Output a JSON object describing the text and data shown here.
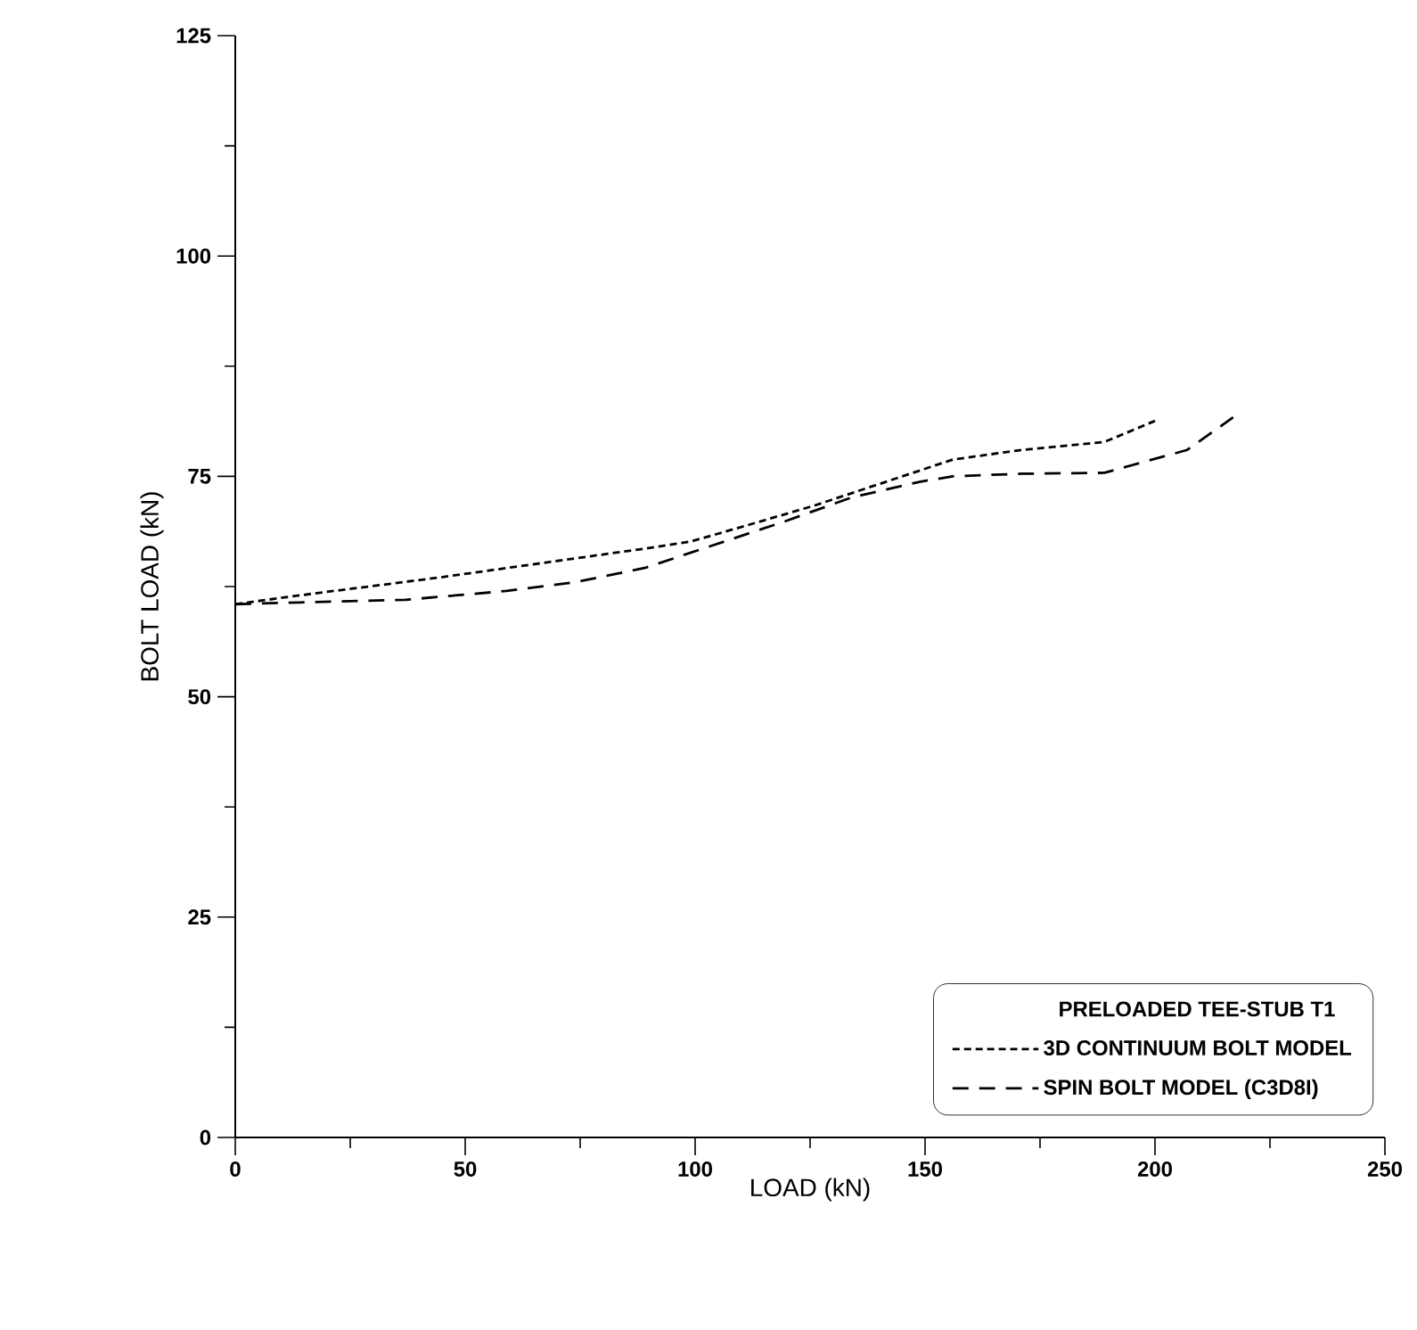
{
  "chart_data": {
    "type": "line",
    "xlabel": "LOAD (kN)",
    "ylabel": "BOLT LOAD (kN)",
    "legend_title": "PRELOADED TEE-STUB T1",
    "xlim": [
      0,
      250
    ],
    "ylim": [
      0,
      125
    ],
    "xticks": [
      0,
      50,
      100,
      150,
      200,
      250
    ],
    "yticks": [
      0,
      25,
      50,
      75,
      100,
      125
    ],
    "legend": "bottom right",
    "grid": false,
    "marker": "none",
    "series": [
      {
        "name": "3D CONTINUUM BOLT MODEL",
        "color": "#000000",
        "line_style": "dotted",
        "x": [
          0,
          14,
          29,
          44,
          59,
          74,
          89,
          99,
          111,
          126,
          141,
          156,
          171,
          189,
          200
        ],
        "values": [
          60.5,
          61.5,
          62.5,
          63.5,
          64.6,
          65.7,
          66.8,
          67.6,
          69.4,
          71.7,
          74.3,
          76.9,
          78,
          78.9,
          81.3
        ]
      },
      {
        "name": "SPIN BOLT MODEL (C3D8I)",
        "color": "#000000",
        "line_style": "dashed",
        "x": [
          0,
          14,
          37,
          59,
          74,
          89,
          104,
          119,
          134,
          149,
          156,
          171,
          189,
          207,
          217
        ],
        "values": [
          60.5,
          60.7,
          61,
          62,
          63,
          64.6,
          67.2,
          69.8,
          72.6,
          74.4,
          75,
          75.3,
          75.4,
          78,
          81.7
        ]
      }
    ]
  }
}
